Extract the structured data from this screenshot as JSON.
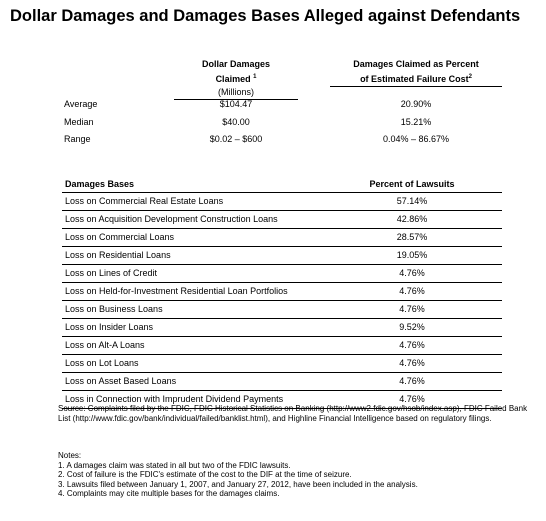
{
  "title": "Dollar Damages and Damages Bases Alleged against Defendants",
  "summary_table": {
    "col1_header_line1": "Dollar Damages",
    "col1_header_line2": "Claimed",
    "col1_header_sup": "1",
    "col1_header_unit": "(Millions)",
    "col2_header_line1": "Damages Claimed as Percent",
    "col2_header_line2": "of Estimated Failure Cost",
    "col2_header_sup": "2",
    "rows": [
      {
        "label": "Average",
        "dollar": "$104.47",
        "percent": "20.90%"
      },
      {
        "label": "Median",
        "dollar": "$40.00",
        "percent": "15.21%"
      },
      {
        "label": "Range",
        "dollar": "$0.02 – $600",
        "percent": "0.04% – 86.67%"
      }
    ]
  },
  "bases_table": {
    "header_bases": "Damages Bases",
    "header_percent": "Percent of Lawsuits",
    "rows": [
      {
        "basis": "Loss on Commercial Real Estate Loans",
        "percent": "57.14%"
      },
      {
        "basis": "Loss on Acquisition Development Construction Loans",
        "percent": "42.86%"
      },
      {
        "basis": "Loss on Commercial Loans",
        "percent": "28.57%"
      },
      {
        "basis": "Loss on Residential Loans",
        "percent": "19.05%"
      },
      {
        "basis": "Loss on Lines of Credit",
        "percent": "4.76%"
      },
      {
        "basis": "Loss on Held-for-Investment Residential Loan Portfolios",
        "percent": "4.76%"
      },
      {
        "basis": "Loss on Business Loans",
        "percent": "4.76%"
      },
      {
        "basis": "Loss on Insider Loans",
        "percent": "9.52%"
      },
      {
        "basis": "Loss on Alt-A Loans",
        "percent": "4.76%"
      },
      {
        "basis": "Loss on Lot Loans",
        "percent": "4.76%"
      },
      {
        "basis": "Loss on Asset Based Loans",
        "percent": "4.76%"
      },
      {
        "basis": "Loss in Connection with Imprudent Dividend Payments",
        "percent": "4.76%"
      }
    ]
  },
  "source": "Source: Complaints filed by the FDIC, FDIC Historical Statistics on Banking (http://www2.fdic.gov/hsob/index.asp), FDIC Failed Bank List (http://www.fdic.gov/bank/individual/failed/banklist.html), and Highline Financial Intelligence based on regulatory filings.",
  "notes": {
    "heading": "Notes:",
    "items": [
      "1. A damages claim was stated in all but two of the FDIC lawsuits.",
      "2. Cost of failure is the FDIC's estimate of the cost to the DIF at the time of seizure.",
      "3. Lawsuits filed between January 1, 2007, and January 27, 2012, have been included in the analysis.",
      "4. Complaints may cite multiple bases for the damages claims."
    ]
  }
}
